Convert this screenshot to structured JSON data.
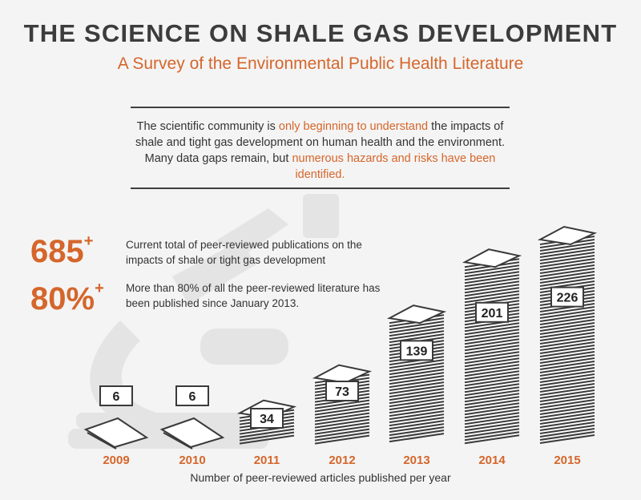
{
  "header": {
    "title": "THE SCIENCE ON SHALE GAS DEVELOPMENT",
    "subtitle": "A Survey of the Environmental Public Health Literature"
  },
  "intro": {
    "part1": "The scientific community is ",
    "highlight1": "only beginning to understand",
    "part2": " the impacts of shale and tight gas development on human health and the environment. Many data gaps remain, but ",
    "highlight2": "numerous hazards and risks have been identified."
  },
  "stats": [
    {
      "value": "685",
      "suffix": "+",
      "text": "Current total of peer-reviewed publications on the impacts of shale or tight gas development"
    },
    {
      "value": "80%",
      "suffix": "+",
      "text": "More than 80% of all the peer-reviewed literature has been published since January 2013."
    }
  ],
  "chart_data": {
    "type": "bar",
    "categories": [
      "2009",
      "2010",
      "2011",
      "2012",
      "2013",
      "2014",
      "2015"
    ],
    "values": [
      6,
      6,
      34,
      73,
      139,
      201,
      226
    ],
    "xlabel": "Number of peer-reviewed articles published per year",
    "ylabel": ""
  },
  "colors": {
    "accent": "#d5662b",
    "text": "#333333",
    "stack": "#3a3a3a",
    "background": "#f4f4f4",
    "watermark": "#e3e3e3"
  }
}
